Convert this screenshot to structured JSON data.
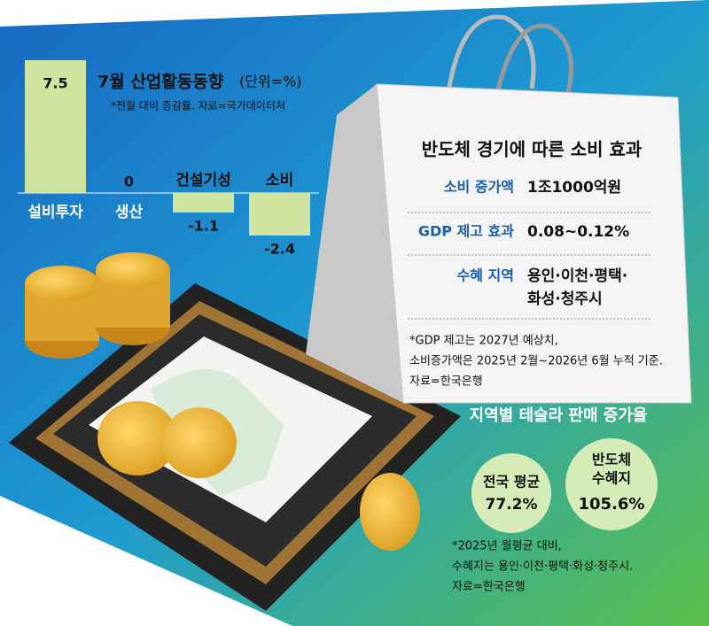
{
  "chart_data": {
    "type": "bar",
    "title": "7월 산업활동동향",
    "unit": "(단위=%)",
    "note": "*전월 대비 증감률. 자료=국가데이터처",
    "categories": [
      "설비투자",
      "생산",
      "건설기성",
      "소비"
    ],
    "values": [
      7.5,
      0,
      -1.1,
      -2.4
    ],
    "color": "#cfe4a0"
  },
  "effect": {
    "title": "반도체 경기에 따른 소비 효과",
    "rows": [
      [
        "소비 증가액",
        "1조1000억원"
      ],
      [
        "GDP 제고 효과",
        "0.08~0.12%"
      ],
      [
        "수혜 지역",
        "용인·이천·평택·",
        "화성·청주시"
      ]
    ],
    "notes": [
      "*GDP 제고는 2027년 예상치,",
      "소비증가액은 2025년 2월~2026년 6월 누적 기준.",
      "자료=한국은행"
    ]
  },
  "tesla": {
    "title": "지역별 테슬라 판매 증가율",
    "items": [
      {
        "label": "전국 평균",
        "value": "77.2%"
      },
      {
        "label": "반도체",
        "label2": "수혜지",
        "value": "105.6%"
      }
    ],
    "notes": [
      "*2025년 월평균 대비,",
      "수혜지는 용인·이천·평택·화성·청주시.",
      "자료=한국은행"
    ]
  }
}
